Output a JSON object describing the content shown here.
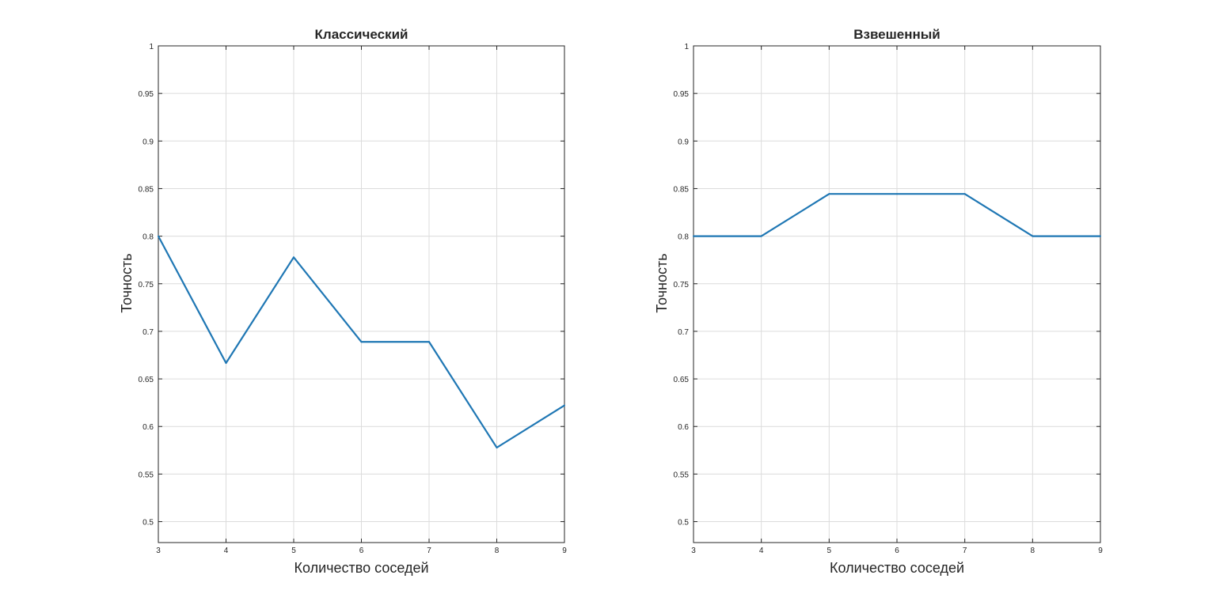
{
  "colors": {
    "line": "#1f77b4",
    "grid": "#dcdcdc",
    "axes": "#262626"
  },
  "chart_data": [
    {
      "type": "line",
      "title": "Классический",
      "xlabel": "Количество соседей",
      "ylabel": "Точность",
      "x": [
        3,
        4,
        5,
        6,
        7,
        8,
        9
      ],
      "series": [
        {
          "values": [
            0.8,
            0.6667,
            0.7778,
            0.6889,
            0.6889,
            0.5778,
            0.6222
          ]
        }
      ],
      "xlim": [
        3,
        9
      ],
      "ylim": [
        0.478,
        1
      ],
      "xticks": [
        "3",
        "4",
        "5",
        "6",
        "7",
        "8",
        "9"
      ],
      "yticks": [
        "0.5",
        "0.55",
        "0.6",
        "0.65",
        "0.7",
        "0.75",
        "0.8",
        "0.85",
        "0.9",
        "0.95",
        "1"
      ],
      "ytick_values": [
        0.5,
        0.55,
        0.6,
        0.65,
        0.7,
        0.75,
        0.8,
        0.85,
        0.9,
        0.95,
        1
      ],
      "grid": true,
      "legend": "none"
    },
    {
      "type": "line",
      "title": "Взвешенный",
      "xlabel": "Количество соседей",
      "ylabel": "Точность",
      "x": [
        3,
        4,
        5,
        6,
        7,
        8,
        9
      ],
      "series": [
        {
          "values": [
            0.8,
            0.8,
            0.8444,
            0.8444,
            0.8444,
            0.8,
            0.8
          ]
        }
      ],
      "xlim": [
        3,
        9
      ],
      "ylim": [
        0.478,
        1
      ],
      "xticks": [
        "3",
        "4",
        "5",
        "6",
        "7",
        "8",
        "9"
      ],
      "yticks": [
        "0.5",
        "0.55",
        "0.6",
        "0.65",
        "0.7",
        "0.75",
        "0.8",
        "0.85",
        "0.9",
        "0.95",
        "1"
      ],
      "ytick_values": [
        0.5,
        0.55,
        0.6,
        0.65,
        0.7,
        0.75,
        0.8,
        0.85,
        0.9,
        0.95,
        1
      ],
      "grid": true,
      "legend": "none"
    }
  ]
}
